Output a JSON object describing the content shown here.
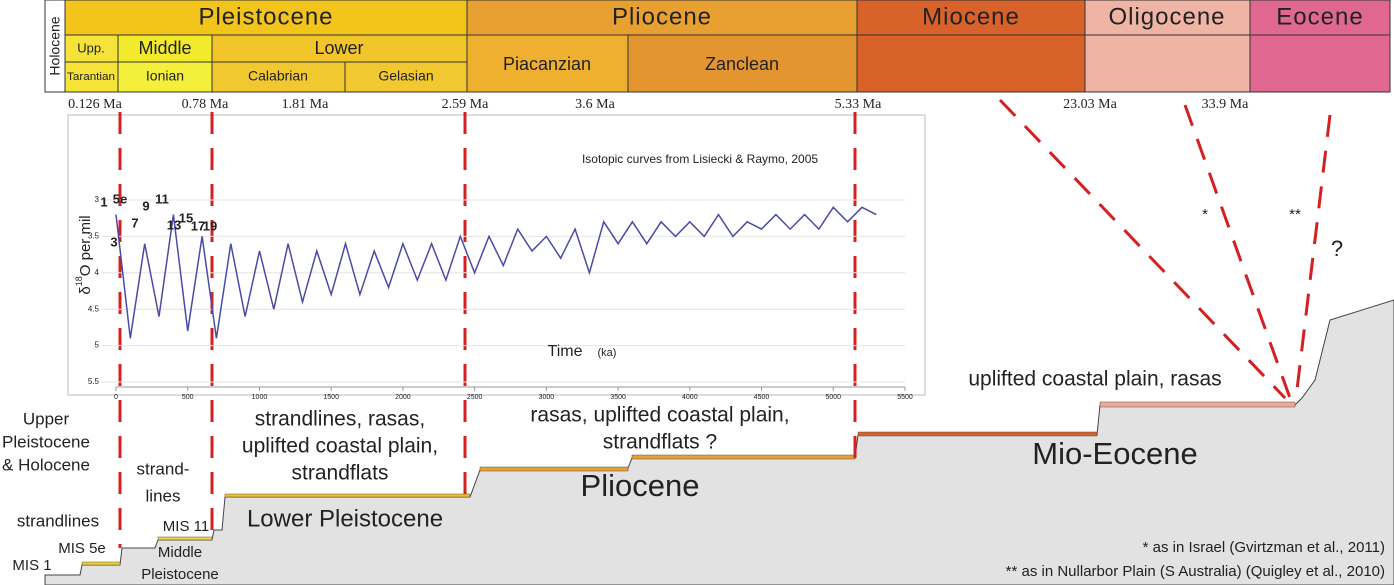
{
  "header": {
    "holocene": "Holocene",
    "epochs": [
      "Pleistocene",
      "Pliocene",
      "Miocene",
      "Oligocene",
      "Eocene"
    ],
    "subdivisions": [
      "Upp.",
      "Middle",
      "Lower"
    ],
    "stages": [
      "Tarantian",
      "Ionian",
      "Calabrian",
      "Gelasian",
      "Piacanzian",
      "Zanclean"
    ]
  },
  "boundaries": [
    "0.126 Ma",
    "0.78 Ma",
    "1.81 Ma",
    "2.59 Ma",
    "3.6 Ma",
    "5.33 Ma",
    "23.03 Ma",
    "33.9 Ma"
  ],
  "chart_data": {
    "type": "line",
    "title": "Isotopic curves from Lisiecki & Raymo, 2005",
    "x_label": "Time",
    "x_label_unit": "(ka)",
    "y_label_parts": [
      "δ",
      "18",
      "O per mil"
    ],
    "x": [
      0,
      100,
      200,
      300,
      400,
      500,
      600,
      700,
      800,
      900,
      1000,
      1100,
      1200,
      1300,
      1400,
      1500,
      1600,
      1700,
      1800,
      1900,
      2000,
      2100,
      2200,
      2300,
      2400,
      2500,
      2600,
      2700,
      2800,
      2900,
      3000,
      3100,
      3200,
      3300,
      3400,
      3500,
      3600,
      3700,
      3800,
      3900,
      4000,
      4100,
      4200,
      4300,
      4400,
      4500,
      4600,
      4700,
      4800,
      4900,
      5000,
      5100,
      5200,
      5300
    ],
    "series": [
      {
        "color": "#4a4aa8",
        "values": [
          3.2,
          4.9,
          3.6,
          4.6,
          3.2,
          4.8,
          3.5,
          4.9,
          3.6,
          4.6,
          3.7,
          4.5,
          3.6,
          4.4,
          3.7,
          4.3,
          3.6,
          4.3,
          3.7,
          4.2,
          3.6,
          4.1,
          3.6,
          4.1,
          3.5,
          4.0,
          3.5,
          3.9,
          3.4,
          3.7,
          3.5,
          3.8,
          3.4,
          4.0,
          3.3,
          3.6,
          3.3,
          3.6,
          3.3,
          3.5,
          3.3,
          3.5,
          3.2,
          3.5,
          3.3,
          3.4,
          3.2,
          3.4,
          3.2,
          3.4,
          3.1,
          3.3,
          3.1,
          3.2
        ]
      }
    ],
    "xlim": [
      0,
      5500
    ],
    "ylim": [
      5.5,
      3
    ],
    "xticks": [
      0,
      500,
      1000,
      1500,
      2000,
      2500,
      3000,
      3500,
      4000,
      4500,
      5000,
      5500
    ],
    "yticks": [
      3,
      3.5,
      4,
      4.5,
      5,
      5.5
    ],
    "mis_labels": [
      "1",
      "5e",
      "3",
      "7",
      "9",
      "11",
      "13",
      "15",
      "17",
      "19"
    ]
  },
  "landscape": {
    "upper": [
      "Upper",
      "Pleistocene",
      "& Holocene"
    ],
    "strandlines": "strandlines",
    "mis1": "MIS 1",
    "mis5e": "MIS 5e",
    "strand": [
      "strand-",
      "lines"
    ],
    "mis11": "MIS 11",
    "middle": [
      "Middle",
      "Pleistocene"
    ],
    "lower_text": [
      "strandlines, rasas,",
      "uplifted coastal plain,",
      "strandflats"
    ],
    "plio_text": [
      "rasas, uplifted coastal plain,",
      "strandflats ?"
    ],
    "mio_text": "uplifted coastal plain, rasas",
    "lower_name": "Lower Pleistocene",
    "plio_name": "Pliocene",
    "mio_name": "Mio-Eocene",
    "star1": "*",
    "star2": "**",
    "question": "?"
  },
  "notes": [
    "* as in Israel (Gvirtzman et al., 2011)",
    "** as in Nullarbor Plain (S Australia) (Quigley et al., 2010)"
  ]
}
